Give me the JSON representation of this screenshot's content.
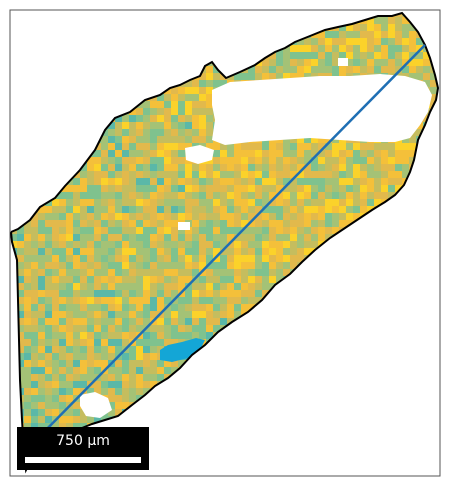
{
  "figure": {
    "type": "EBSD-style spatial map with line profile",
    "scale_bar": {
      "label": "750 μm"
    },
    "colors": {
      "background": "#ffffff",
      "frame": "#555555",
      "outline": "#000000",
      "profile_line": "#1f6fb4",
      "scale_bar_bg": "#000000",
      "scale_bar_fg": "#ffffff",
      "palette": [
        "#37a3c6",
        "#5ab8a8",
        "#7fc28e",
        "#a4c276",
        "#c5bd5e",
        "#e2b94c",
        "#f4c03a",
        "#fbd22a"
      ],
      "hotspot": "#14a6d6"
    }
  }
}
